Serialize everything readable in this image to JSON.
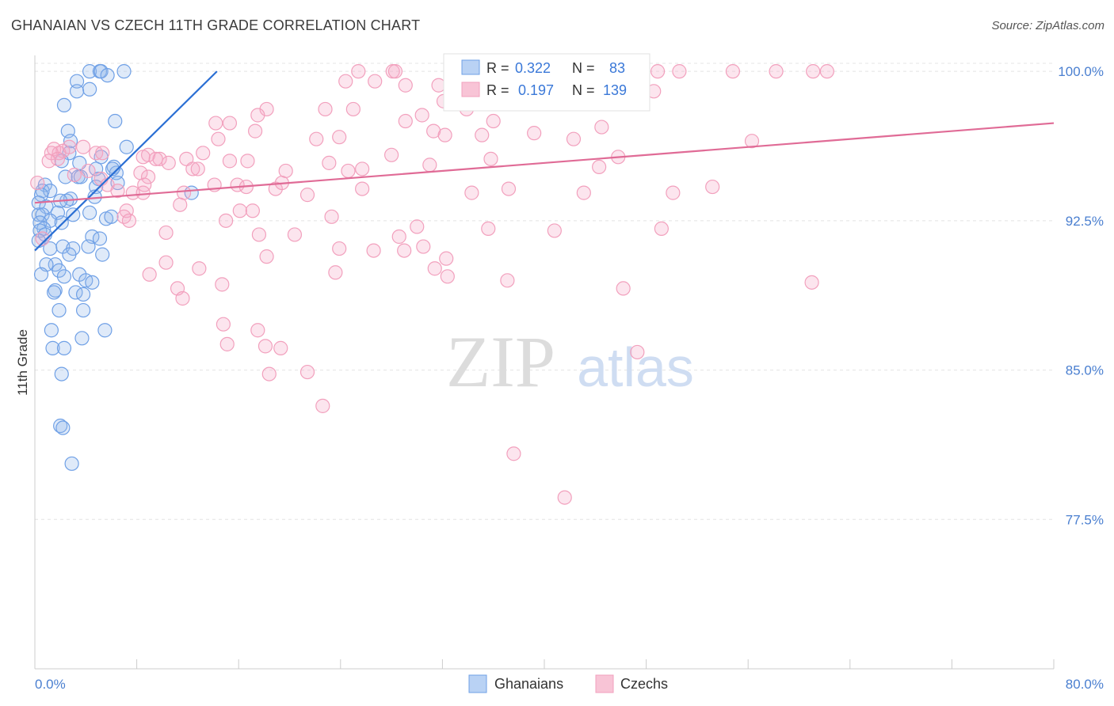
{
  "title": "GHANAIAN VS CZECH 11TH GRADE CORRELATION CHART",
  "source": "Source: ZipAtlas.com",
  "watermark": {
    "zip": "ZIP",
    "atlas": "atlas"
  },
  "chart_data": {
    "type": "scatter",
    "title": "GHANAIAN VS CZECH 11TH GRADE CORRELATION CHART",
    "ylabel": "11th Grade",
    "xlabel": "",
    "xlim": [
      0,
      80
    ],
    "ylim": [
      70.0,
      100.8
    ],
    "x_tick_labels": [
      "0.0%",
      "80.0%"
    ],
    "y_ticks": [
      77.5,
      85.0,
      92.5,
      100.0
    ],
    "y_tick_labels": [
      "77.5%",
      "85.0%",
      "92.5%",
      "100.0%"
    ],
    "grid": true,
    "legend": {
      "entries": [
        {
          "r_label": "R =",
          "r_value": "0.322",
          "n_label": "N =",
          "n_value": "83"
        },
        {
          "r_label": "R =",
          "r_value": "0.197",
          "n_label": "N =",
          "n_value": "139"
        }
      ]
    },
    "series": [
      {
        "name": "Ghanaians",
        "color": "#6fa0e6",
        "line_color": "#2b6fd4",
        "trend": {
          "x": [
            0,
            14.3
          ],
          "y": [
            91.0,
            100.0
          ]
        },
        "points": [
          [
            4.3,
            100
          ],
          [
            5.1,
            100
          ],
          [
            5.2,
            100
          ],
          [
            7.0,
            100
          ],
          [
            5.7,
            99.8
          ],
          [
            3.3,
            99.5
          ],
          [
            4.3,
            99.1
          ],
          [
            3.3,
            99
          ],
          [
            2.3,
            98.3
          ],
          [
            6.3,
            97.5
          ],
          [
            2.6,
            97
          ],
          [
            2.8,
            96.5
          ],
          [
            7.2,
            96.2
          ],
          [
            2.7,
            95.9
          ],
          [
            5.2,
            95.7
          ],
          [
            3.5,
            95.4
          ],
          [
            2.1,
            95.5
          ],
          [
            6.2,
            95.2
          ],
          [
            4.8,
            95.1
          ],
          [
            6.4,
            94.9
          ],
          [
            3.4,
            94.7
          ],
          [
            2.4,
            94.7
          ],
          [
            6.5,
            94.4
          ],
          [
            5.0,
            94.6
          ],
          [
            0.8,
            94.3
          ],
          [
            0.6,
            94.0
          ],
          [
            1.2,
            94.0
          ],
          [
            0.5,
            93.8
          ],
          [
            4.8,
            94.2
          ],
          [
            12.3,
            93.9
          ],
          [
            4.7,
            93.7
          ],
          [
            2.8,
            93.6
          ],
          [
            2.5,
            93.5
          ],
          [
            0.3,
            93.4
          ],
          [
            0.9,
            93.2
          ],
          [
            0.3,
            92.8
          ],
          [
            1.8,
            92.9
          ],
          [
            3.0,
            92.8
          ],
          [
            0.6,
            92.8
          ],
          [
            1.2,
            92.5
          ],
          [
            2.1,
            92.4
          ],
          [
            0.4,
            92.4
          ],
          [
            0.7,
            92.1
          ],
          [
            0.4,
            92.0
          ],
          [
            0.8,
            91.8
          ],
          [
            4.5,
            91.7
          ],
          [
            5.1,
            91.6
          ],
          [
            0.3,
            91.5
          ],
          [
            1.2,
            91.1
          ],
          [
            2.2,
            91.2
          ],
          [
            3.0,
            91.1
          ],
          [
            4.2,
            91.2
          ],
          [
            2.7,
            90.8
          ],
          [
            5.3,
            90.8
          ],
          [
            1.6,
            90.3
          ],
          [
            0.9,
            90.3
          ],
          [
            1.9,
            90.0
          ],
          [
            0.5,
            89.8
          ],
          [
            3.5,
            89.8
          ],
          [
            2.3,
            89.7
          ],
          [
            4.0,
            89.5
          ],
          [
            4.5,
            89.4
          ],
          [
            1.6,
            89.0
          ],
          [
            3.2,
            88.9
          ],
          [
            1.5,
            88.9
          ],
          [
            3.8,
            88.8
          ],
          [
            1.9,
            88.0
          ],
          [
            3.8,
            88.0
          ],
          [
            1.3,
            87.0
          ],
          [
            5.5,
            87.0
          ],
          [
            3.7,
            86.6
          ],
          [
            1.4,
            86.1
          ],
          [
            2.3,
            86.1
          ],
          [
            2.1,
            84.8
          ],
          [
            2.0,
            82.2
          ],
          [
            2.2,
            82.1
          ],
          [
            2.9,
            80.3
          ],
          [
            4.3,
            92.9
          ],
          [
            5.6,
            92.6
          ],
          [
            6.0,
            92.7
          ],
          [
            2.0,
            93.5
          ],
          [
            3.6,
            94.7
          ],
          [
            6.1,
            95.1
          ]
        ]
      },
      {
        "name": "Czechs",
        "color": "#f2a0bd",
        "line_color": "#e06b96",
        "trend": {
          "x": [
            0,
            80
          ],
          "y": [
            93.4,
            97.4
          ]
        },
        "points": [
          [
            25.4,
            100
          ],
          [
            28.1,
            100
          ],
          [
            28.3,
            100
          ],
          [
            34.7,
            100
          ],
          [
            42.6,
            100
          ],
          [
            43.7,
            100
          ],
          [
            48.9,
            100
          ],
          [
            50.6,
            100
          ],
          [
            54.8,
            100
          ],
          [
            58.2,
            100
          ],
          [
            61.1,
            100
          ],
          [
            62.2,
            100
          ],
          [
            24.4,
            99.5
          ],
          [
            26.7,
            99.5
          ],
          [
            31.7,
            99.3
          ],
          [
            29.1,
            99.3
          ],
          [
            33.0,
            99.1
          ],
          [
            34.0,
            99.5
          ],
          [
            35.7,
            99.3
          ],
          [
            38.1,
            99.3
          ],
          [
            40.0,
            99.2
          ],
          [
            47.5,
            99.3
          ],
          [
            48.6,
            99.0
          ],
          [
            32.1,
            98.5
          ],
          [
            40.7,
            98.7
          ],
          [
            33.9,
            98.1
          ],
          [
            18.2,
            98.1
          ],
          [
            22.8,
            98.1
          ],
          [
            25.0,
            98.1
          ],
          [
            30.4,
            97.8
          ],
          [
            17.5,
            97.8
          ],
          [
            36.0,
            97.5
          ],
          [
            29.1,
            97.5
          ],
          [
            14.2,
            97.4
          ],
          [
            15.3,
            97.4
          ],
          [
            44.5,
            97.2
          ],
          [
            31.3,
            97.0
          ],
          [
            17.3,
            97.0
          ],
          [
            39.2,
            96.9
          ],
          [
            32.2,
            96.8
          ],
          [
            35.1,
            96.8
          ],
          [
            23.9,
            96.7
          ],
          [
            14.4,
            96.6
          ],
          [
            22.1,
            96.6
          ],
          [
            42.3,
            96.6
          ],
          [
            56.3,
            96.5
          ],
          [
            3.8,
            96.2
          ],
          [
            1.5,
            96.1
          ],
          [
            2.2,
            96.0
          ],
          [
            1.9,
            95.9
          ],
          [
            4.8,
            95.9
          ],
          [
            5.3,
            95.9
          ],
          [
            1.3,
            95.9
          ],
          [
            13.2,
            95.9
          ],
          [
            8.9,
            95.8
          ],
          [
            28.0,
            95.8
          ],
          [
            9.8,
            95.6
          ],
          [
            1.8,
            95.6
          ],
          [
            8.5,
            95.7
          ],
          [
            9.5,
            95.6
          ],
          [
            11.9,
            95.6
          ],
          [
            15.3,
            95.5
          ],
          [
            10.5,
            95.4
          ],
          [
            16.7,
            95.5
          ],
          [
            23.1,
            95.4
          ],
          [
            31.0,
            95.3
          ],
          [
            45.8,
            95.7
          ],
          [
            35.8,
            95.6
          ],
          [
            4.2,
            95.0
          ],
          [
            3.1,
            94.8
          ],
          [
            8.3,
            94.9
          ],
          [
            8.9,
            94.7
          ],
          [
            12.4,
            95.1
          ],
          [
            12.8,
            95.1
          ],
          [
            19.7,
            95.0
          ],
          [
            24.6,
            95.0
          ],
          [
            25.7,
            95.1
          ],
          [
            44.3,
            95.2
          ],
          [
            5.2,
            94.6
          ],
          [
            5.7,
            94.3
          ],
          [
            6.5,
            94.0
          ],
          [
            8.6,
            94.3
          ],
          [
            14.1,
            94.3
          ],
          [
            15.9,
            94.3
          ],
          [
            16.6,
            94.2
          ],
          [
            7.7,
            93.9
          ],
          [
            8.5,
            93.9
          ],
          [
            11.7,
            93.9
          ],
          [
            18.9,
            94.1
          ],
          [
            19.4,
            94.4
          ],
          [
            21.4,
            93.8
          ],
          [
            25.7,
            94.1
          ],
          [
            34.3,
            93.9
          ],
          [
            37.2,
            94.1
          ],
          [
            43.1,
            93.9
          ],
          [
            50.1,
            93.9
          ],
          [
            53.2,
            94.2
          ],
          [
            0.2,
            94.4
          ],
          [
            11.4,
            93.3
          ],
          [
            16.1,
            93.0
          ],
          [
            17.1,
            93.0
          ],
          [
            7.2,
            93.0
          ],
          [
            7.0,
            92.7
          ],
          [
            7.4,
            92.5
          ],
          [
            15.0,
            92.5
          ],
          [
            23.3,
            92.7
          ],
          [
            30.0,
            92.2
          ],
          [
            35.6,
            92.1
          ],
          [
            40.8,
            92.0
          ],
          [
            49.2,
            92.1
          ],
          [
            10.3,
            91.9
          ],
          [
            17.6,
            91.8
          ],
          [
            20.4,
            91.8
          ],
          [
            28.6,
            91.7
          ],
          [
            23.9,
            91.1
          ],
          [
            26.6,
            91.0
          ],
          [
            29.0,
            91.0
          ],
          [
            30.5,
            91.2
          ],
          [
            18.2,
            90.7
          ],
          [
            32.3,
            90.6
          ],
          [
            31.4,
            90.1
          ],
          [
            10.3,
            90.4
          ],
          [
            12.9,
            90.1
          ],
          [
            23.6,
            89.9
          ],
          [
            14.7,
            89.3
          ],
          [
            9.0,
            89.8
          ],
          [
            11.2,
            89.1
          ],
          [
            32.4,
            89.7
          ],
          [
            37.1,
            89.5
          ],
          [
            46.2,
            89.1
          ],
          [
            61.0,
            89.4
          ],
          [
            11.6,
            88.6
          ],
          [
            14.8,
            87.3
          ],
          [
            17.5,
            87.0
          ],
          [
            15.1,
            86.3
          ],
          [
            18.1,
            86.2
          ],
          [
            19.3,
            86.1
          ],
          [
            18.4,
            84.8
          ],
          [
            21.4,
            84.9
          ],
          [
            22.6,
            83.2
          ],
          [
            37.6,
            80.8
          ],
          [
            41.6,
            78.6
          ],
          [
            47.3,
            85.9
          ],
          [
            1.1,
            95.5
          ],
          [
            2.7,
            96.2
          ],
          [
            0.6,
            91.6
          ]
        ]
      }
    ]
  },
  "bottom_legend": {
    "ghanaians": "Ghanaians",
    "czechs": "Czechs"
  }
}
